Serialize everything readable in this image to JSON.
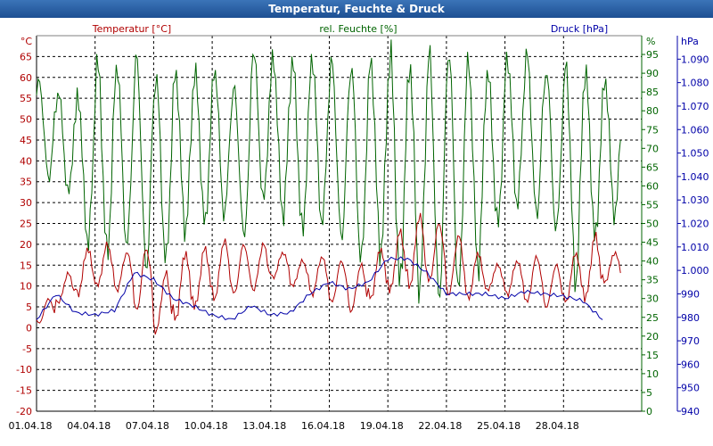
{
  "window": {
    "title": "Temperatur, Feuchte & Druck"
  },
  "colors": {
    "temperature": "#b00000",
    "humidity": "#006400",
    "pressure": "#0000a8",
    "grid": "#000000"
  },
  "chart_data": {
    "type": "line",
    "title": "Temperatur, Feuchte & Druck",
    "grid": true,
    "axes": {
      "temperature": {
        "label": "Temperatur [°C]",
        "unit": "°C",
        "range": [
          -20,
          70
        ],
        "ticks": [
          -20,
          -15,
          -10,
          -5,
          0,
          5,
          10,
          15,
          20,
          25,
          30,
          35,
          40,
          45,
          50,
          55,
          60,
          65
        ]
      },
      "humidity": {
        "label": "rel. Feuchte [%]",
        "unit": "%",
        "range": [
          0,
          100
        ],
        "ticks": [
          0,
          5,
          10,
          15,
          20,
          25,
          30,
          35,
          40,
          45,
          50,
          55,
          60,
          65,
          70,
          75,
          80,
          85,
          90,
          95
        ]
      },
      "pressure": {
        "label": "Druck [hPa]",
        "unit": "hPa",
        "range": [
          940,
          1100
        ],
        "ticks": [
          "940",
          "950",
          "960",
          "970",
          "980",
          "990",
          "1.000",
          "1.010",
          "1.020",
          "1.030",
          "1.040",
          "1.050",
          "1.060",
          "1.070",
          "1.080",
          "1.090"
        ]
      },
      "x": {
        "range": [
          "01.04.18",
          "01.05.18"
        ],
        "tick_labels": [
          "01.04.18",
          "04.04.18",
          "07.04.18",
          "10.04.18",
          "13.04.18",
          "16.04.18",
          "19.04.18",
          "22.04.18",
          "25.04.18",
          "28.04.18"
        ]
      }
    },
    "series": [
      {
        "name": "Temperatur [°C]",
        "axis": "temperature",
        "x": [
          "01.04",
          "02.04",
          "03.04",
          "04.04",
          "05.04",
          "06.04",
          "07.04",
          "08.04",
          "09.04",
          "10.04",
          "11.04",
          "12.04",
          "13.04",
          "14.04",
          "15.04",
          "16.04",
          "17.04",
          "18.04",
          "19.04",
          "20.04",
          "21.04",
          "22.04",
          "23.04",
          "24.04",
          "25.04",
          "26.04",
          "27.04",
          "28.04",
          "29.04",
          "30.04"
        ],
        "min": [
          1,
          6,
          8,
          10,
          9,
          4,
          -1,
          2,
          5,
          7,
          8,
          9,
          12,
          10,
          8,
          6,
          4,
          7,
          9,
          10,
          11,
          8,
          7,
          9,
          8,
          6,
          5,
          6,
          7,
          11
        ],
        "max": [
          7,
          13,
          19,
          20,
          18,
          19,
          13,
          18,
          19,
          21,
          20,
          20,
          18,
          16,
          17,
          16,
          15,
          19,
          23,
          27,
          25,
          22,
          18,
          15,
          16,
          17,
          15,
          18,
          22,
          18
        ]
      },
      {
        "name": "rel. Feuchte [%]",
        "axis": "humidity",
        "x": [
          "01.04",
          "02.04",
          "03.04",
          "04.04",
          "05.04",
          "06.04",
          "07.04",
          "08.04",
          "09.04",
          "10.04",
          "11.04",
          "12.04",
          "13.04",
          "14.04",
          "15.04",
          "16.04",
          "17.04",
          "18.04",
          "19.04",
          "20.04",
          "21.04",
          "22.04",
          "23.04",
          "24.04",
          "25.04",
          "26.04",
          "27.04",
          "28.04",
          "29.04",
          "30.04"
        ],
        "min": [
          62,
          58,
          45,
          42,
          44,
          38,
          40,
          48,
          50,
          52,
          47,
          56,
          52,
          48,
          50,
          46,
          40,
          42,
          34,
          32,
          30,
          32,
          38,
          50,
          55,
          52,
          48,
          34,
          46,
          52
        ],
        "max": [
          88,
          85,
          84,
          93,
          92,
          94,
          89,
          90,
          90,
          91,
          86,
          96,
          94,
          93,
          94,
          93,
          92,
          93,
          95,
          92,
          95,
          96,
          93,
          90,
          94,
          95,
          91,
          92,
          90,
          88
        ]
      },
      {
        "name": "Druck [hPa]",
        "axis": "pressure",
        "x": [
          "01.04",
          "02.04",
          "03.04",
          "04.04",
          "05.04",
          "06.04",
          "07.04",
          "08.04",
          "09.04",
          "10.04",
          "11.04",
          "12.04",
          "13.04",
          "14.04",
          "15.04",
          "16.04",
          "17.04",
          "18.04",
          "19.04",
          "20.04",
          "21.04",
          "22.04",
          "23.04",
          "24.04",
          "25.04",
          "26.04",
          "27.04",
          "28.04",
          "29.04",
          "30.04"
        ],
        "values": [
          979,
          990,
          982,
          981,
          983,
          999,
          996,
          988,
          985,
          981,
          979,
          985,
          981,
          982,
          990,
          995,
          992,
          995,
          1005,
          1005,
          999,
          990,
          990,
          990,
          988,
          991,
          990,
          989,
          987,
          979
        ]
      }
    ]
  }
}
